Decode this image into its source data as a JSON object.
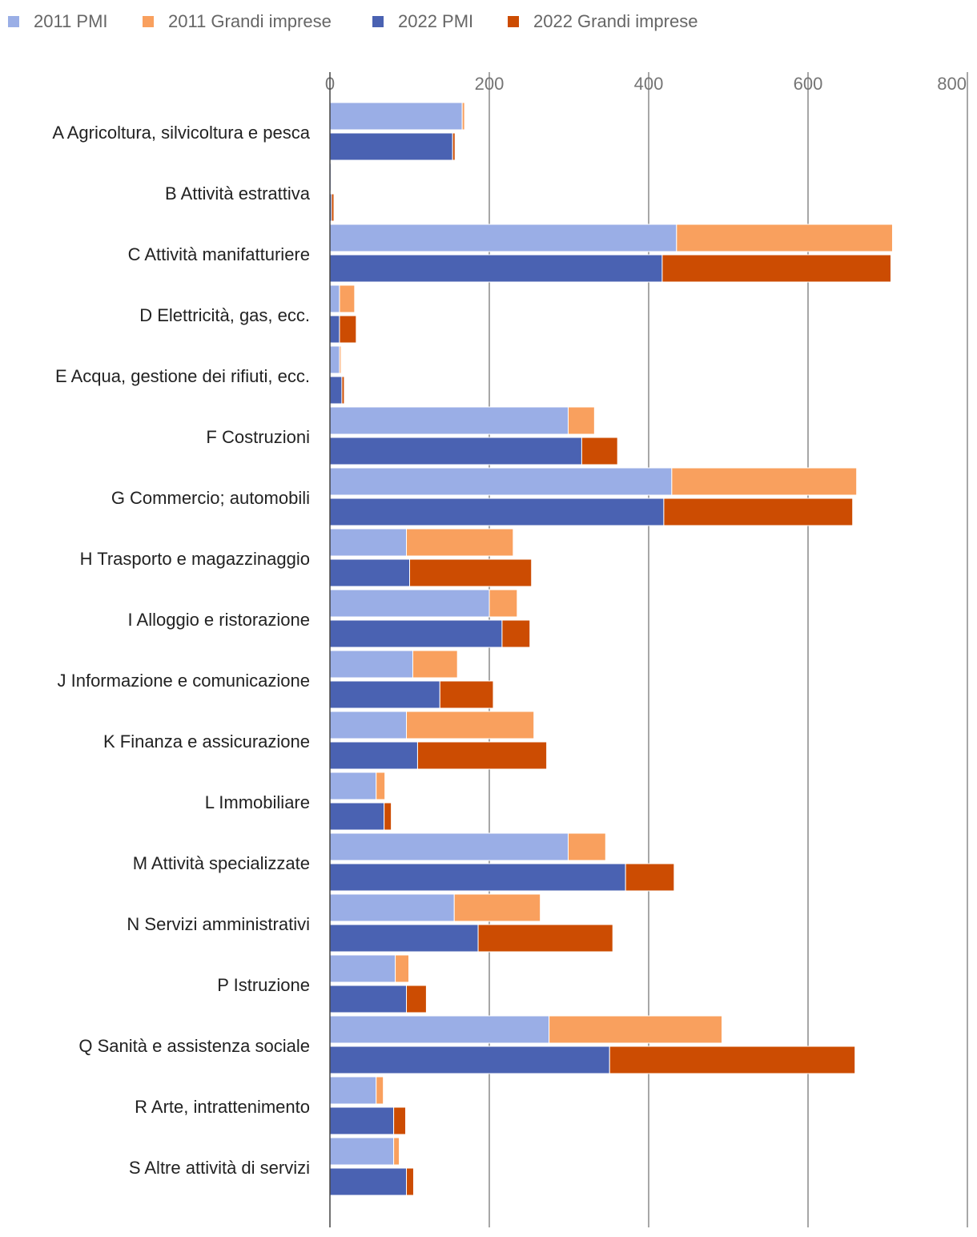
{
  "chart_data": {
    "type": "bar",
    "orientation": "horizontal",
    "stacking": "stacked-per-year",
    "xlim": [
      0,
      800
    ],
    "ticks": [
      "0",
      "200",
      "400",
      "600",
      "800"
    ],
    "tick_values": [
      0,
      200,
      400,
      600,
      800
    ],
    "grid": true,
    "legend_position": "top-left",
    "categories": [
      "A Agricoltura, silvicoltura e pesca",
      "B Attività estrattiva",
      "C Attività manifatturiere",
      "D Elettricità, gas, ecc.",
      "E Acqua, gestione dei rifiuti, ecc.",
      "F Costruzioni",
      "G Commercio; automobili",
      "H Trasporto e magazzinaggio",
      "I Alloggio e ristorazione",
      "J Informazione e comunicazione",
      "K Finanza e assicurazione",
      "L Immobiliare",
      "M Attività specializzate",
      "N Servizi amministrativi",
      "P Istruzione",
      "Q Sanità e assistenza sociale",
      "R Arte, intrattenimento",
      "S Altre attività di servizi"
    ],
    "series": [
      {
        "name": "2011 PMI",
        "group": "2011",
        "color": "#9aaee6",
        "values": [
          166,
          1.5,
          435,
          12,
          12,
          299,
          429,
          96,
          200,
          104,
          96,
          58,
          299,
          156,
          82,
          275,
          58,
          80
        ]
      },
      {
        "name": "2011 Grandi imprese",
        "group": "2011",
        "color": "#f9a05e",
        "values": [
          3,
          0.5,
          271,
          19,
          2,
          33,
          232,
          134,
          35,
          56,
          160,
          11,
          47,
          108,
          17,
          217,
          9,
          7
        ]
      },
      {
        "name": "2022 PMI",
        "group": "2022",
        "color": "#4a62b2",
        "values": [
          154,
          2,
          417,
          12,
          15,
          316,
          419,
          100,
          216,
          138,
          110,
          68,
          371,
          186,
          96,
          351,
          80,
          96
        ]
      },
      {
        "name": "2022 Grandi imprese",
        "group": "2022",
        "color": "#cc4c02",
        "values": [
          3,
          3,
          287,
          21,
          3,
          45,
          237,
          153,
          35,
          67,
          162,
          9,
          61,
          169,
          25,
          308,
          15,
          9
        ]
      }
    ]
  }
}
